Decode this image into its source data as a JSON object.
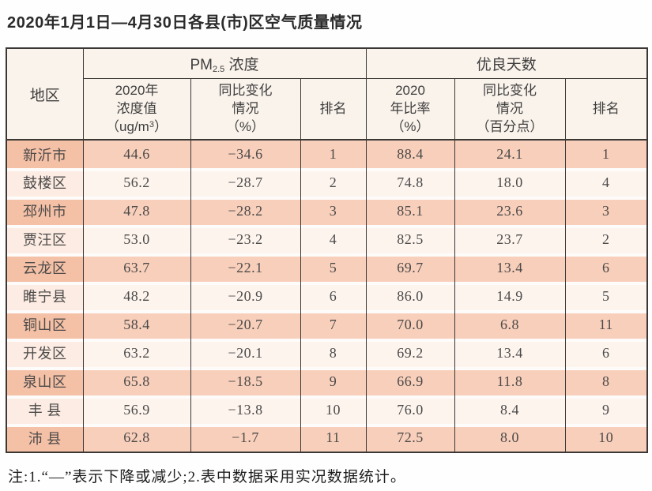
{
  "title": "2020年1月1日—4月30日各县(市)区空气质量情况",
  "table": {
    "columns": {
      "region": "地区",
      "pm": {
        "group_prefix": "PM",
        "group_sub": "2.5",
        "group_suffix": " 浓度",
        "value_line1": "2020年",
        "value_line2": "浓度值",
        "unit_pre": "（ug/m",
        "unit_sup": "3",
        "unit_post": "）",
        "change": "同比变化\n情况\n（%）",
        "rank": "排名"
      },
      "good_days": {
        "group": "优良天数",
        "ratio": "2020\n年比率\n（%）",
        "change": "同比变化\n情况\n（百分点）",
        "rank": "排名"
      }
    },
    "rows": [
      {
        "region": "新沂市",
        "pm_value": "44.6",
        "pm_change": "−34.6",
        "pm_rank": "1",
        "gd_ratio": "88.4",
        "gd_change": "24.1",
        "gd_rank": "1"
      },
      {
        "region": "鼓楼区",
        "pm_value": "56.2",
        "pm_change": "−28.7",
        "pm_rank": "2",
        "gd_ratio": "74.8",
        "gd_change": "18.0",
        "gd_rank": "4"
      },
      {
        "region": "邳州市",
        "pm_value": "47.8",
        "pm_change": "−28.2",
        "pm_rank": "3",
        "gd_ratio": "85.1",
        "gd_change": "23.6",
        "gd_rank": "3"
      },
      {
        "region": "贾汪区",
        "pm_value": "53.0",
        "pm_change": "−23.2",
        "pm_rank": "4",
        "gd_ratio": "82.5",
        "gd_change": "23.7",
        "gd_rank": "2"
      },
      {
        "region": "云龙区",
        "pm_value": "63.7",
        "pm_change": "−22.1",
        "pm_rank": "5",
        "gd_ratio": "69.7",
        "gd_change": "13.4",
        "gd_rank": "6"
      },
      {
        "region": "睢宁县",
        "pm_value": "48.2",
        "pm_change": "−20.9",
        "pm_rank": "6",
        "gd_ratio": "86.0",
        "gd_change": "14.9",
        "gd_rank": "5"
      },
      {
        "region": "铜山区",
        "pm_value": "58.4",
        "pm_change": "−20.7",
        "pm_rank": "7",
        "gd_ratio": "70.0",
        "gd_change": "6.8",
        "gd_rank": "11"
      },
      {
        "region": "开发区",
        "pm_value": "63.2",
        "pm_change": "−20.1",
        "pm_rank": "8",
        "gd_ratio": "69.2",
        "gd_change": "13.4",
        "gd_rank": "6"
      },
      {
        "region": "泉山区",
        "pm_value": "65.8",
        "pm_change": "−18.5",
        "pm_rank": "9",
        "gd_ratio": "66.9",
        "gd_change": "11.8",
        "gd_rank": "8"
      },
      {
        "region": "丰 县",
        "pm_value": "56.9",
        "pm_change": "−13.8",
        "pm_rank": "10",
        "gd_ratio": "76.0",
        "gd_change": "8.4",
        "gd_rank": "9"
      },
      {
        "region": "沛 县",
        "pm_value": "62.8",
        "pm_change": "−1.7",
        "pm_rank": "11",
        "gd_ratio": "72.5",
        "gd_change": "8.0",
        "gd_rank": "10"
      }
    ]
  },
  "footnote": "注:1.“—”表示下降或减少;2.表中数据采用实况数据统计。"
}
